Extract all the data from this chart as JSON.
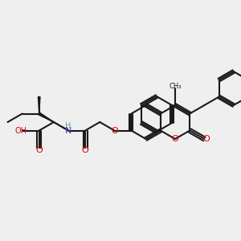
{
  "bg_color": "#efefef",
  "bond_color": "#1a1a1a",
  "bond_width": 1.5,
  "atom_colors": {
    "O": "#e00000",
    "N": "#4040c0",
    "C": "#1a1a1a",
    "H": "#6a9a9a"
  },
  "font_size": 7.5
}
